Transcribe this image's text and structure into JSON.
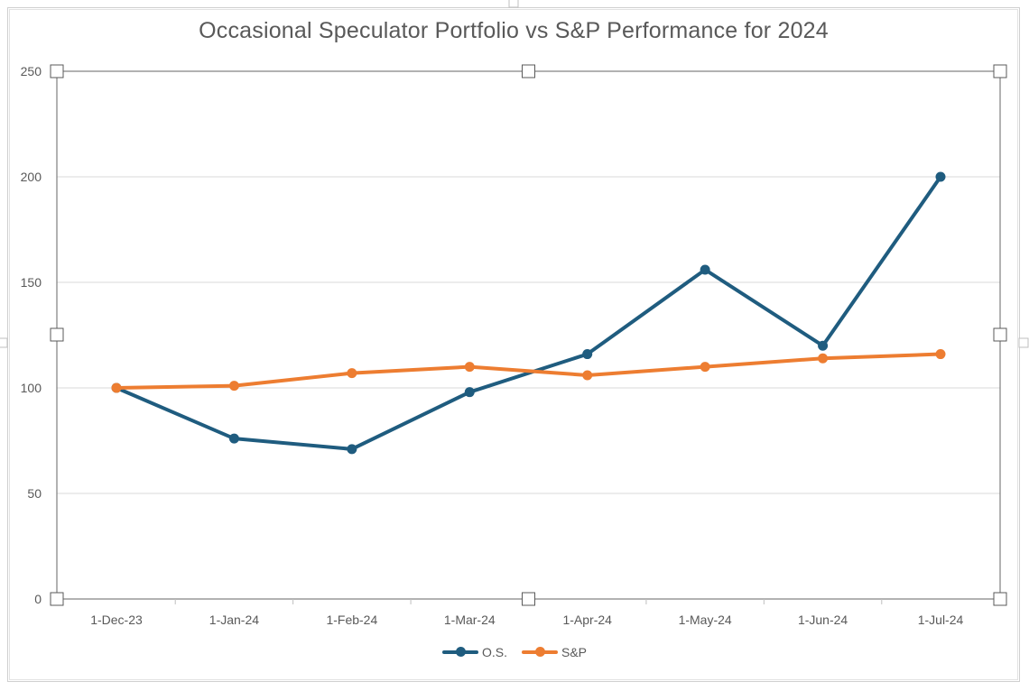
{
  "chart_data": {
    "type": "line",
    "title": "Occasional Speculator Portfolio vs S&P Performance for 2024",
    "xlabel": "",
    "ylabel": "",
    "x": [
      "1-Dec-23",
      "1-Jan-24",
      "1-Feb-24",
      "1-Mar-24",
      "1-Apr-24",
      "1-May-24",
      "1-Jun-24",
      "1-Jul-24"
    ],
    "ylim": [
      0,
      250
    ],
    "yticks": [
      0,
      50,
      100,
      150,
      200,
      250
    ],
    "grid": true,
    "legend_position": "bottom",
    "series": [
      {
        "name": "O.S.",
        "color": "#1f5c7f",
        "values": [
          100,
          76,
          71,
          98,
          116,
          156,
          120,
          200
        ]
      },
      {
        "name": "S&P",
        "color": "#ed7d31",
        "values": [
          100,
          101,
          107,
          110,
          106,
          110,
          114,
          116
        ]
      }
    ]
  }
}
